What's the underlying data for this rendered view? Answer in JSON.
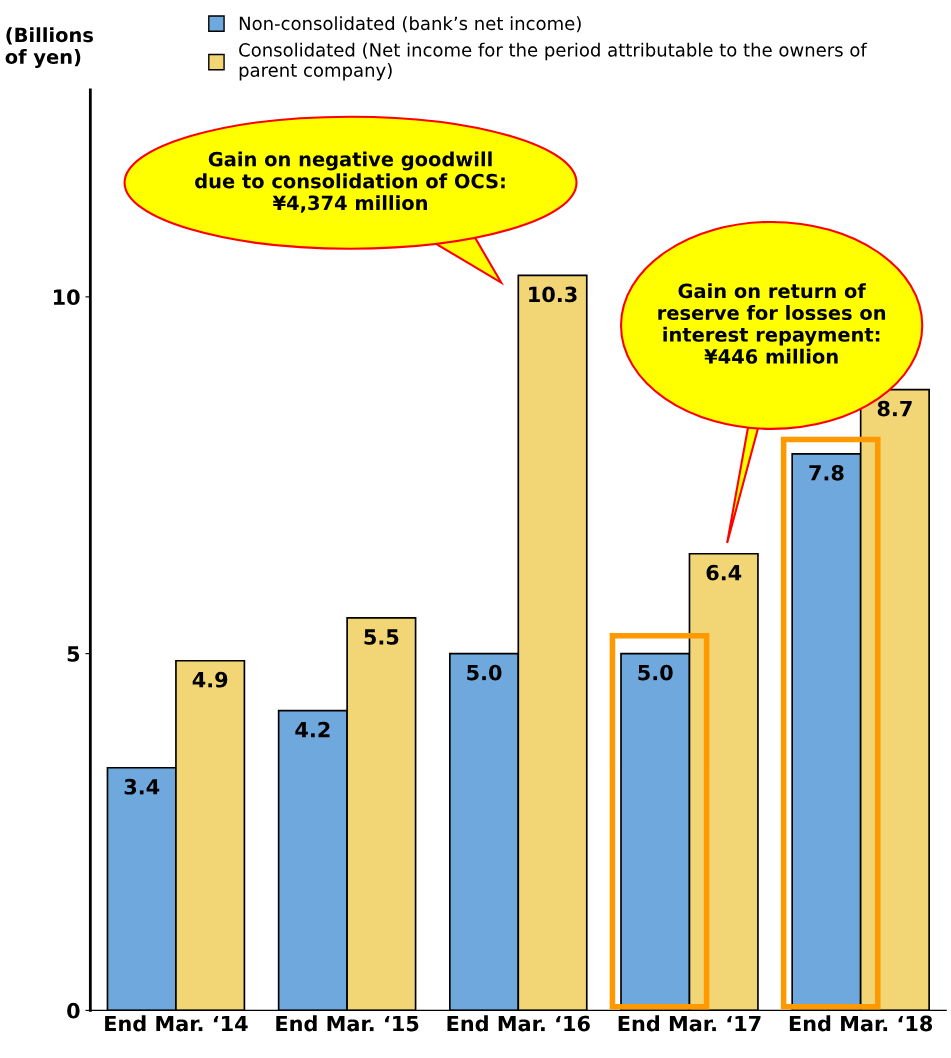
{
  "chart_data": {
    "type": "bar",
    "ylabel": "(Billions\nof yen)",
    "categories": [
      "End Mar. ‘14",
      "End Mar. ‘15",
      "End Mar. ‘16",
      "End Mar. ‘17",
      "End Mar. ‘18"
    ],
    "series": [
      {
        "name": "Non-consolidated (bank’s net income)",
        "color": "#6fa8dc",
        "values": [
          3.4,
          4.2,
          5.0,
          5.0,
          7.8
        ],
        "value_labels": [
          "3.4",
          "4.2",
          "5.0",
          "5.0",
          "7.8"
        ]
      },
      {
        "name": "Consolidated (Net income for the period attributable to the owners of\nparent company)",
        "color": "#f2d675",
        "values": [
          4.9,
          5.5,
          10.3,
          6.4,
          8.7
        ],
        "value_labels": [
          "4.9",
          "5.5",
          "10.3",
          "6.4",
          "8.7"
        ]
      }
    ],
    "ylim": [
      0,
      12.9
    ],
    "yticks": [
      0,
      5,
      10
    ],
    "grid": false,
    "legend": "top",
    "annotations": [
      "Gain on negative goodwill\ndue to consolidation of OCS:\n¥4,374 million",
      "Gain on return of\nreserve for losses on\ninterest repayment:\n¥446 million"
    ]
  }
}
